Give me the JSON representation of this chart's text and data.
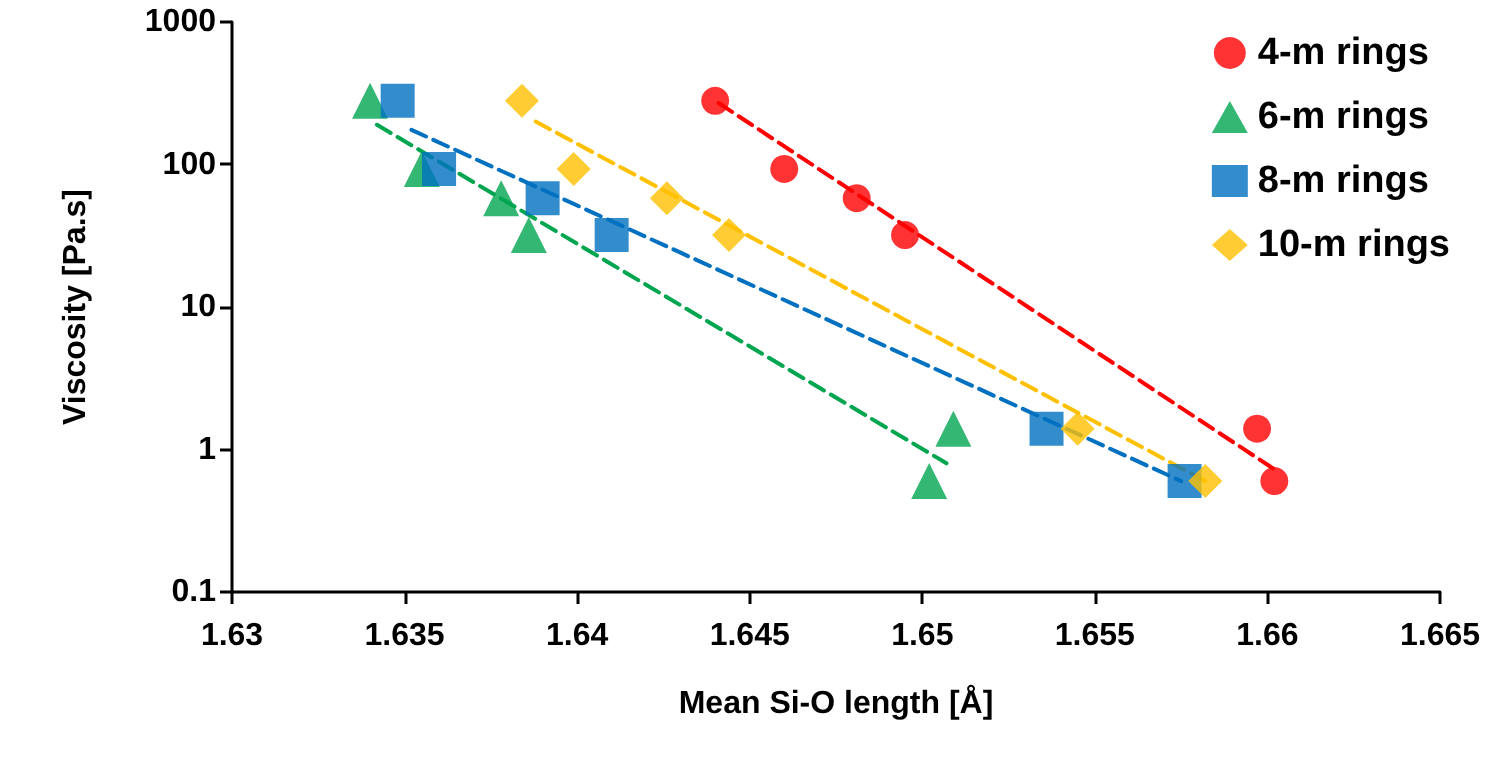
{
  "chart_data": {
    "type": "scatter",
    "xlabel": "Mean Si-O length [Å]",
    "ylabel": "Viscosity [Pa.s]",
    "xlim": [
      1.63,
      1.665
    ],
    "xticks": [
      1.63,
      1.635,
      1.64,
      1.645,
      1.65,
      1.655,
      1.66,
      1.665
    ],
    "ylim": [
      0.1,
      1000
    ],
    "yticks": [
      0.1,
      1,
      10,
      100,
      1000
    ],
    "log": "y",
    "grid": false,
    "legend": "top right",
    "series": [
      {
        "name": "4-m rings",
        "color": "#ff0000",
        "marker": "circle",
        "x": [
          1.644,
          1.646,
          1.6481,
          1.6495,
          1.6597,
          1.6602
        ],
        "values": [
          280,
          93,
          58,
          32,
          1.4,
          0.6
        ]
      },
      {
        "name": "6-m rings",
        "color": "#00a550",
        "marker": "triangle",
        "x": [
          1.634,
          1.6355,
          1.6378,
          1.6386,
          1.6502,
          1.6509
        ],
        "values": [
          280,
          93,
          58,
          32,
          0.6,
          1.4
        ]
      },
      {
        "name": "8-m rings",
        "color": "#0070c0",
        "marker": "square",
        "x": [
          1.6348,
          1.636,
          1.639,
          1.641,
          1.6536,
          1.6576
        ],
        "values": [
          280,
          93,
          58,
          32,
          1.4,
          0.6
        ]
      },
      {
        "name": "10-m rings",
        "color": "#ffc000",
        "marker": "diamond",
        "x": [
          1.6384,
          1.6399,
          1.6426,
          1.6444,
          1.6545,
          1.6582
        ],
        "values": [
          280,
          93,
          58,
          32,
          1.4,
          0.6
        ]
      },
      {
        "type": "line",
        "color": "#ff0000",
        "marker": "none",
        "line_style": "dashed",
        "x": [
          1.6441,
          1.6603
        ],
        "values": [
          270,
          0.7
        ]
      },
      {
        "type": "line",
        "color": "#00a550",
        "marker": "none",
        "line_style": "dashed",
        "x": [
          1.6342,
          1.6507
        ],
        "values": [
          190,
          0.8
        ]
      },
      {
        "type": "line",
        "color": "#0070c0",
        "marker": "none",
        "line_style": "dashed",
        "x": [
          1.6352,
          1.6575
        ],
        "values": [
          175,
          0.6
        ]
      },
      {
        "type": "line",
        "color": "#ffc000",
        "marker": "none",
        "line_style": "dashed",
        "x": [
          1.6388,
          1.6582
        ],
        "values": [
          200,
          0.6
        ]
      }
    ]
  }
}
